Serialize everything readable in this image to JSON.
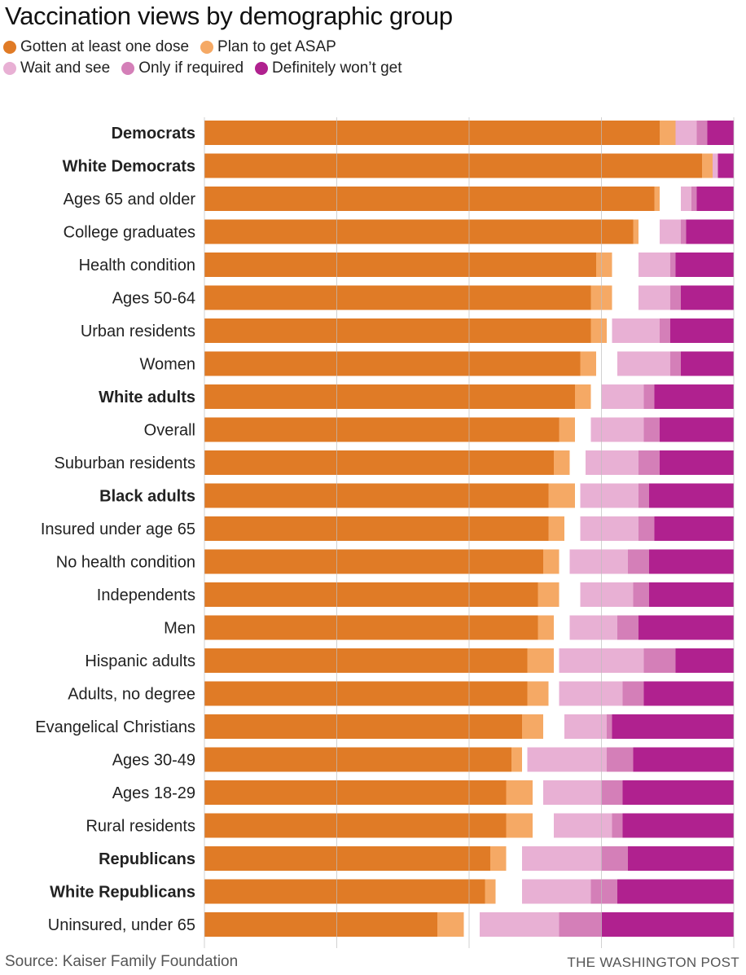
{
  "chart_data": {
    "type": "bar",
    "orientation": "horizontal",
    "stacked": true,
    "title": "Vaccination views by demographic group",
    "xlim": [
      0,
      100
    ],
    "grid": true,
    "legend_position": "top-left",
    "categories": [
      "Democrats",
      "White Democrats",
      "Ages 65 and older",
      "College graduates",
      "Health condition",
      "Ages 50-64",
      "Urban residents",
      "Women",
      "White adults",
      "Overall",
      "Suburban residents",
      "Black adults",
      "Insured under age 65",
      "No health condition",
      "Independents",
      "Men",
      "Hispanic adults",
      "Adults, no degree",
      "Evangelical Christians",
      "Ages 30-49",
      "Ages 18-29",
      "Rural residents",
      "Republicans",
      "White Republicans",
      "Uninsured, under 65"
    ],
    "bold_categories": [
      "Democrats",
      "White Democrats",
      "White adults",
      "Black adults",
      "Republicans",
      "White Republicans"
    ],
    "series": [
      {
        "name": "Gotten at least one dose",
        "color": "#e07b26",
        "values": [
          86,
          94,
          85,
          81,
          74,
          73,
          73,
          71,
          70,
          67,
          66,
          65,
          65,
          64,
          63,
          63,
          61,
          61,
          60,
          58,
          57,
          57,
          54,
          53,
          44
        ]
      },
      {
        "name": "Plan to get ASAP",
        "color": "#f5a965",
        "values": [
          3,
          2,
          1,
          1,
          3,
          4,
          3,
          3,
          3,
          3,
          3,
          5,
          3,
          3,
          4,
          3,
          5,
          4,
          4,
          2,
          5,
          5,
          3,
          2,
          5
        ]
      },
      {
        "name": "Wait and see",
        "color": "#e8b0d4",
        "values": [
          4,
          1,
          2,
          4,
          6,
          6,
          9,
          10,
          8,
          10,
          10,
          11,
          11,
          11,
          10,
          9,
          16,
          12,
          8,
          15,
          11,
          11,
          15,
          13,
          15
        ]
      },
      {
        "name": "Only if required",
        "color": "#d47fb8",
        "values": [
          2,
          0,
          1,
          1,
          1,
          2,
          2,
          2,
          2,
          3,
          4,
          2,
          3,
          4,
          3,
          4,
          6,
          4,
          1,
          5,
          4,
          2,
          5,
          5,
          8
        ]
      },
      {
        "name": "Definitely won't get",
        "color": "#b0218f",
        "values": [
          5,
          3,
          7,
          9,
          11,
          10,
          12,
          10,
          15,
          14,
          14,
          16,
          15,
          16,
          16,
          18,
          11,
          17,
          23,
          19,
          21,
          21,
          20,
          22,
          25
        ]
      }
    ]
  },
  "legend_rows": [
    [
      0,
      1
    ],
    [
      2,
      3,
      4
    ]
  ],
  "legend_labels": [
    "Gotten at least one dose",
    "Plan to get ASAP",
    "Wait and see",
    "Only if required",
    "Definitely won’t get"
  ],
  "source": "Source: Kaiser Family Foundation",
  "credit": "THE WASHINGTON POST"
}
